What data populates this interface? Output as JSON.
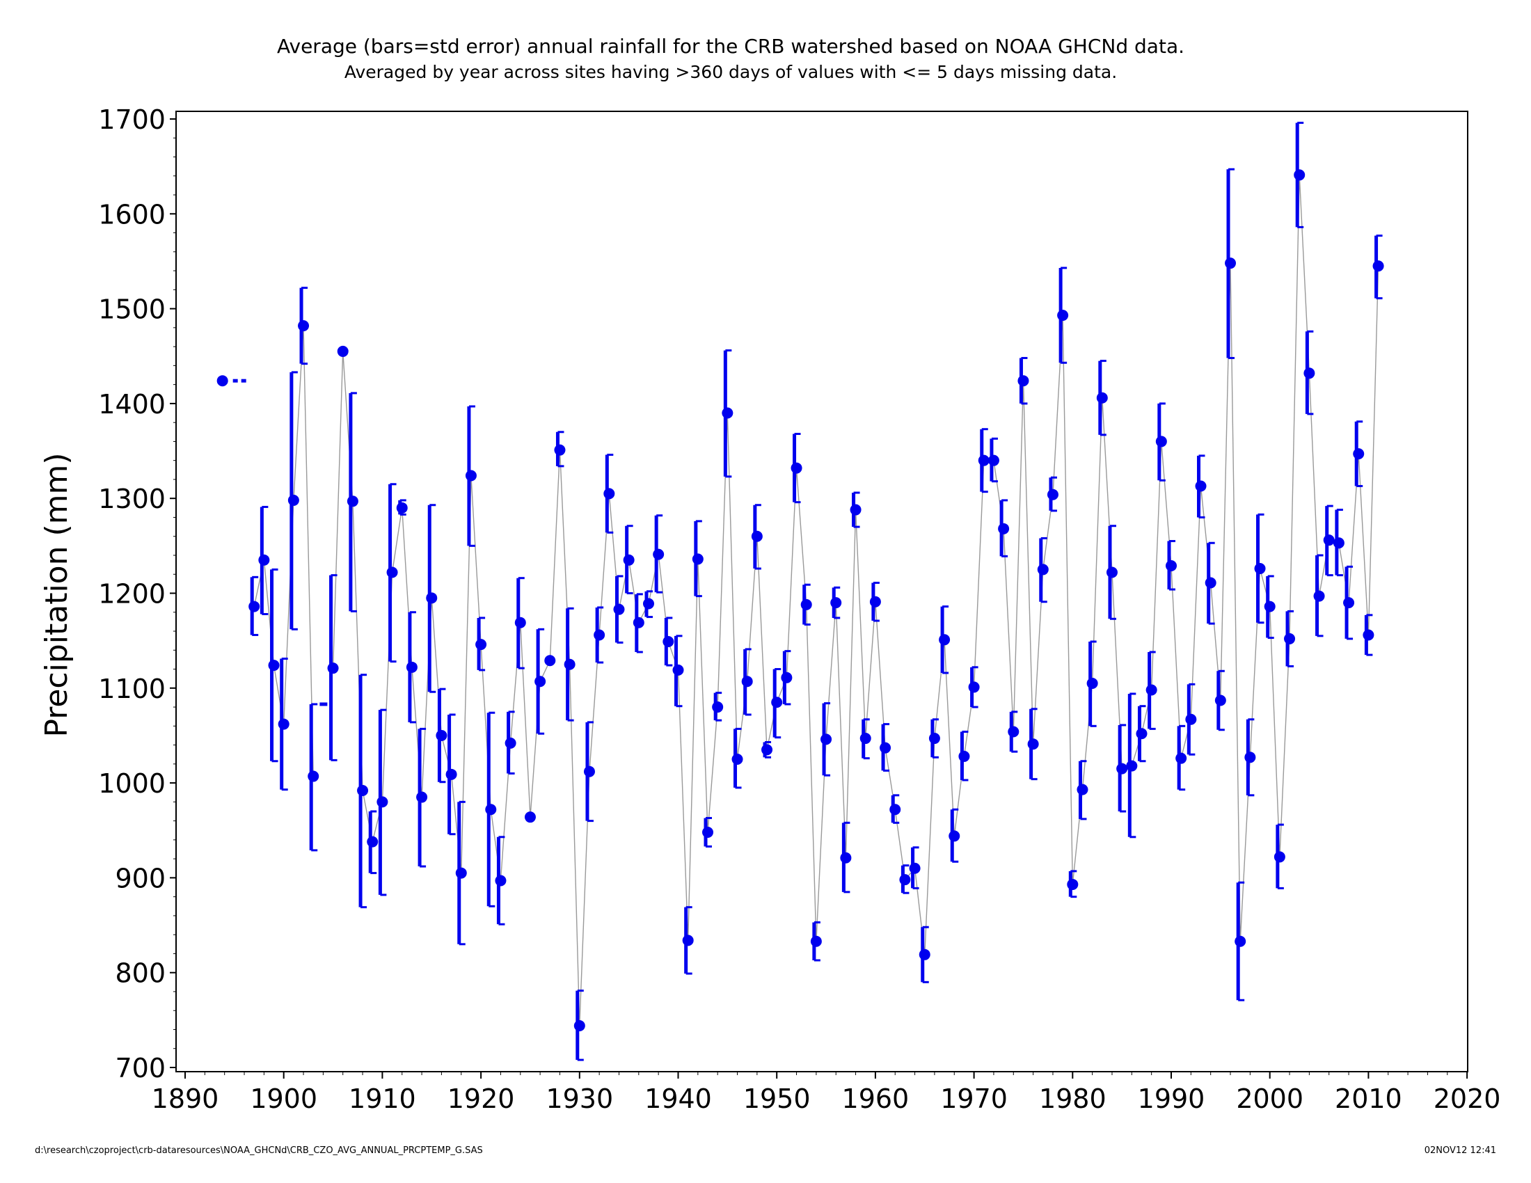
{
  "chart_data": {
    "type": "scatter",
    "title": "Average (bars=std error) annual rainfall for the CRB watershed based on NOAA GHCNd data.",
    "subtitle": "Averaged by year across sites having >360 days of values with <= 5 days missing data.",
    "xlabel": "",
    "ylabel": "Precipitation (mm)",
    "xlim": [
      1890,
      2020
    ],
    "ylim": [
      700,
      1700
    ],
    "x_ticks": [
      1890,
      1900,
      1910,
      1920,
      1930,
      1940,
      1950,
      1960,
      1970,
      1980,
      1990,
      2000,
      2010,
      2020
    ],
    "y_ticks": [
      700,
      800,
      900,
      1000,
      1100,
      1200,
      1300,
      1400,
      1500,
      1600,
      1700
    ],
    "grid": false,
    "legend": false,
    "marker_color": "#0000ee",
    "line_color": "#999999",
    "series": [
      {
        "points": [
          {
            "x": 1897,
            "y": 1186,
            "lo": 1156,
            "hi": 1217
          },
          {
            "x": 1898,
            "y": 1235,
            "lo": 1178,
            "hi": 1291
          },
          {
            "x": 1899,
            "y": 1124,
            "lo": 1023,
            "hi": 1225
          },
          {
            "x": 1900,
            "y": 1062,
            "lo": 993,
            "hi": 1131
          },
          {
            "x": 1901,
            "y": 1298,
            "lo": 1162,
            "hi": 1433
          },
          {
            "x": 1902,
            "y": 1482,
            "lo": 1442,
            "hi": 1522
          },
          {
            "x": 1903,
            "y": 1007,
            "lo": 929,
            "hi": 1083
          },
          {
            "x": 1905,
            "y": 1121,
            "lo": 1024,
            "hi": 1219
          },
          {
            "x": 1906,
            "y": 1455,
            "lo": 1455,
            "hi": 1455
          },
          {
            "x": 1907,
            "y": 1297,
            "lo": 1181,
            "hi": 1411
          },
          {
            "x": 1908,
            "y": 992,
            "lo": 869,
            "hi": 1114
          },
          {
            "x": 1909,
            "y": 938,
            "lo": 905,
            "hi": 970
          },
          {
            "x": 1910,
            "y": 980,
            "lo": 882,
            "hi": 1077
          },
          {
            "x": 1911,
            "y": 1222,
            "lo": 1128,
            "hi": 1315
          },
          {
            "x": 1912,
            "y": 1290,
            "lo": 1283,
            "hi": 1298
          },
          {
            "x": 1913,
            "y": 1122,
            "lo": 1064,
            "hi": 1180
          },
          {
            "x": 1914,
            "y": 985,
            "lo": 912,
            "hi": 1057
          },
          {
            "x": 1915,
            "y": 1195,
            "lo": 1096,
            "hi": 1293
          },
          {
            "x": 1916,
            "y": 1050,
            "lo": 1001,
            "hi": 1099
          },
          {
            "x": 1917,
            "y": 1009,
            "lo": 946,
            "hi": 1072
          },
          {
            "x": 1918,
            "y": 905,
            "lo": 830,
            "hi": 980
          },
          {
            "x": 1919,
            "y": 1324,
            "lo": 1250,
            "hi": 1397
          },
          {
            "x": 1920,
            "y": 1146,
            "lo": 1119,
            "hi": 1174
          },
          {
            "x": 1921,
            "y": 972,
            "lo": 870,
            "hi": 1074
          },
          {
            "x": 1922,
            "y": 897,
            "lo": 851,
            "hi": 943
          },
          {
            "x": 1923,
            "y": 1042,
            "lo": 1010,
            "hi": 1075
          },
          {
            "x": 1924,
            "y": 1169,
            "lo": 1121,
            "hi": 1216
          },
          {
            "x": 1925,
            "y": 964,
            "lo": 964,
            "hi": 964
          },
          {
            "x": 1926,
            "y": 1107,
            "lo": 1052,
            "hi": 1162
          },
          {
            "x": 1927,
            "y": 1129,
            "lo": 1129,
            "hi": 1129
          },
          {
            "x": 1928,
            "y": 1351,
            "lo": 1334,
            "hi": 1370
          },
          {
            "x": 1929,
            "y": 1125,
            "lo": 1066,
            "hi": 1184
          },
          {
            "x": 1930,
            "y": 744,
            "lo": 708,
            "hi": 781
          },
          {
            "x": 1931,
            "y": 1012,
            "lo": 960,
            "hi": 1064
          },
          {
            "x": 1932,
            "y": 1156,
            "lo": 1127,
            "hi": 1185
          },
          {
            "x": 1933,
            "y": 1305,
            "lo": 1264,
            "hi": 1346
          },
          {
            "x": 1934,
            "y": 1183,
            "lo": 1148,
            "hi": 1218
          },
          {
            "x": 1935,
            "y": 1235,
            "lo": 1200,
            "hi": 1271
          },
          {
            "x": 1936,
            "y": 1169,
            "lo": 1138,
            "hi": 1199
          },
          {
            "x": 1937,
            "y": 1189,
            "lo": 1175,
            "hi": 1202
          },
          {
            "x": 1938,
            "y": 1241,
            "lo": 1201,
            "hi": 1282
          },
          {
            "x": 1939,
            "y": 1149,
            "lo": 1124,
            "hi": 1174
          },
          {
            "x": 1940,
            "y": 1119,
            "lo": 1081,
            "hi": 1155
          },
          {
            "x": 1941,
            "y": 834,
            "lo": 799,
            "hi": 869
          },
          {
            "x": 1942,
            "y": 1236,
            "lo": 1197,
            "hi": 1276
          },
          {
            "x": 1943,
            "y": 948,
            "lo": 933,
            "hi": 963
          },
          {
            "x": 1944,
            "y": 1080,
            "lo": 1066,
            "hi": 1095
          },
          {
            "x": 1945,
            "y": 1390,
            "lo": 1323,
            "hi": 1456
          },
          {
            "x": 1946,
            "y": 1025,
            "lo": 995,
            "hi": 1057
          },
          {
            "x": 1947,
            "y": 1107,
            "lo": 1072,
            "hi": 1141
          },
          {
            "x": 1948,
            "y": 1260,
            "lo": 1226,
            "hi": 1293
          },
          {
            "x": 1949,
            "y": 1035,
            "lo": 1027,
            "hi": 1043
          },
          {
            "x": 1950,
            "y": 1085,
            "lo": 1048,
            "hi": 1120
          },
          {
            "x": 1951,
            "y": 1111,
            "lo": 1083,
            "hi": 1139
          },
          {
            "x": 1952,
            "y": 1332,
            "lo": 1296,
            "hi": 1368
          },
          {
            "x": 1953,
            "y": 1188,
            "lo": 1167,
            "hi": 1209
          },
          {
            "x": 1954,
            "y": 833,
            "lo": 813,
            "hi": 853
          },
          {
            "x": 1955,
            "y": 1046,
            "lo": 1008,
            "hi": 1084
          },
          {
            "x": 1956,
            "y": 1190,
            "lo": 1174,
            "hi": 1206
          },
          {
            "x": 1957,
            "y": 921,
            "lo": 885,
            "hi": 958
          },
          {
            "x": 1958,
            "y": 1288,
            "lo": 1270,
            "hi": 1306
          },
          {
            "x": 1959,
            "y": 1047,
            "lo": 1026,
            "hi": 1067
          },
          {
            "x": 1960,
            "y": 1191,
            "lo": 1171,
            "hi": 1211
          },
          {
            "x": 1961,
            "y": 1037,
            "lo": 1013,
            "hi": 1062
          },
          {
            "x": 1962,
            "y": 972,
            "lo": 958,
            "hi": 987
          },
          {
            "x": 1963,
            "y": 898,
            "lo": 884,
            "hi": 913
          },
          {
            "x": 1964,
            "y": 910,
            "lo": 889,
            "hi": 932
          },
          {
            "x": 1965,
            "y": 819,
            "lo": 790,
            "hi": 848
          },
          {
            "x": 1966,
            "y": 1047,
            "lo": 1027,
            "hi": 1067
          },
          {
            "x": 1967,
            "y": 1151,
            "lo": 1116,
            "hi": 1186
          },
          {
            "x": 1968,
            "y": 944,
            "lo": 917,
            "hi": 972
          },
          {
            "x": 1969,
            "y": 1028,
            "lo": 1003,
            "hi": 1054
          },
          {
            "x": 1970,
            "y": 1101,
            "lo": 1080,
            "hi": 1122
          },
          {
            "x": 1971,
            "y": 1340,
            "lo": 1307,
            "hi": 1373
          },
          {
            "x": 1972,
            "y": 1340,
            "lo": 1318,
            "hi": 1363
          },
          {
            "x": 1973,
            "y": 1268,
            "lo": 1239,
            "hi": 1298
          },
          {
            "x": 1974,
            "y": 1054,
            "lo": 1033,
            "hi": 1075
          },
          {
            "x": 1975,
            "y": 1424,
            "lo": 1400,
            "hi": 1448
          },
          {
            "x": 1976,
            "y": 1041,
            "lo": 1004,
            "hi": 1078
          },
          {
            "x": 1977,
            "y": 1225,
            "lo": 1191,
            "hi": 1258
          },
          {
            "x": 1978,
            "y": 1304,
            "lo": 1287,
            "hi": 1322
          },
          {
            "x": 1979,
            "y": 1493,
            "lo": 1443,
            "hi": 1543
          },
          {
            "x": 1980,
            "y": 893,
            "lo": 880,
            "hi": 907
          },
          {
            "x": 1981,
            "y": 993,
            "lo": 962,
            "hi": 1023
          },
          {
            "x": 1982,
            "y": 1105,
            "lo": 1060,
            "hi": 1149
          },
          {
            "x": 1983,
            "y": 1406,
            "lo": 1367,
            "hi": 1445
          },
          {
            "x": 1984,
            "y": 1222,
            "lo": 1173,
            "hi": 1271
          },
          {
            "x": 1985,
            "y": 1015,
            "lo": 970,
            "hi": 1061
          },
          {
            "x": 1986,
            "y": 1018,
            "lo": 943,
            "hi": 1094
          },
          {
            "x": 1987,
            "y": 1052,
            "lo": 1023,
            "hi": 1081
          },
          {
            "x": 1988,
            "y": 1098,
            "lo": 1057,
            "hi": 1138
          },
          {
            "x": 1989,
            "y": 1360,
            "lo": 1319,
            "hi": 1400
          },
          {
            "x": 1990,
            "y": 1229,
            "lo": 1204,
            "hi": 1255
          },
          {
            "x": 1991,
            "y": 1026,
            "lo": 993,
            "hi": 1060
          },
          {
            "x": 1992,
            "y": 1067,
            "lo": 1030,
            "hi": 1104
          },
          {
            "x": 1993,
            "y": 1313,
            "lo": 1280,
            "hi": 1345
          },
          {
            "x": 1994,
            "y": 1211,
            "lo": 1168,
            "hi": 1253
          },
          {
            "x": 1995,
            "y": 1087,
            "lo": 1056,
            "hi": 1118
          },
          {
            "x": 1996,
            "y": 1548,
            "lo": 1448,
            "hi": 1647
          },
          {
            "x": 1997,
            "y": 833,
            "lo": 771,
            "hi": 895
          },
          {
            "x": 1998,
            "y": 1027,
            "lo": 987,
            "hi": 1067
          },
          {
            "x": 1999,
            "y": 1226,
            "lo": 1169,
            "hi": 1283
          },
          {
            "x": 2000,
            "y": 1186,
            "lo": 1153,
            "hi": 1218
          },
          {
            "x": 2001,
            "y": 922,
            "lo": 889,
            "hi": 956
          },
          {
            "x": 2002,
            "y": 1152,
            "lo": 1123,
            "hi": 1181
          },
          {
            "x": 2003,
            "y": 1641,
            "lo": 1586,
            "hi": 1696
          },
          {
            "x": 2004,
            "y": 1432,
            "lo": 1389,
            "hi": 1476
          },
          {
            "x": 2005,
            "y": 1197,
            "lo": 1155,
            "hi": 1240
          },
          {
            "x": 2006,
            "y": 1256,
            "lo": 1219,
            "hi": 1292
          },
          {
            "x": 2007,
            "y": 1253,
            "lo": 1219,
            "hi": 1288
          },
          {
            "x": 2008,
            "y": 1190,
            "lo": 1152,
            "hi": 1228
          },
          {
            "x": 2009,
            "y": 1347,
            "lo": 1313,
            "hi": 1381
          },
          {
            "x": 2010,
            "y": 1156,
            "lo": 1135,
            "hi": 1177
          },
          {
            "x": 2011,
            "y": 1545,
            "lo": 1511,
            "hi": 1577
          }
        ]
      }
    ],
    "annotations": [
      {
        "type": "marker_with_bar",
        "x": 1894,
        "y": 1424,
        "note": "isolated marker at left of plot"
      },
      {
        "type": "dash",
        "x": 1904,
        "y": 1083
      }
    ]
  },
  "footer": {
    "left": "d:\\research\\czoproject\\crb-dataresources\\NOAA_GHCNd\\CRB_CZO_AVG_ANNUAL_PRCPTEMP_G.SAS",
    "right": "02NOV12 12:41"
  }
}
